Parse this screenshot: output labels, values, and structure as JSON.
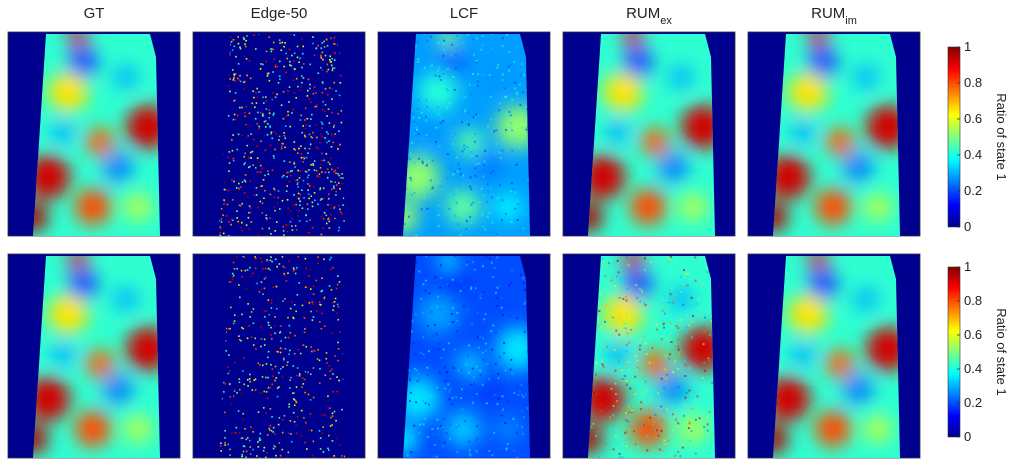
{
  "columns": [
    {
      "title": "GT"
    },
    {
      "title": "Edge-50"
    },
    {
      "title": "LCF"
    },
    {
      "title": "RUM",
      "subscript": "ex"
    },
    {
      "title": "RUM",
      "subscript": "im"
    }
  ],
  "colorbars": [
    {
      "label": "Ratio of state 1",
      "lim": [
        0,
        1
      ],
      "ticks": [
        0,
        0.2,
        0.4,
        0.6,
        0.8,
        1
      ]
    },
    {
      "label": "Ratio of state 1",
      "lim": [
        0,
        1
      ],
      "ticks": [
        0,
        0.2,
        0.4,
        0.6,
        0.8,
        1
      ]
    }
  ]
}
